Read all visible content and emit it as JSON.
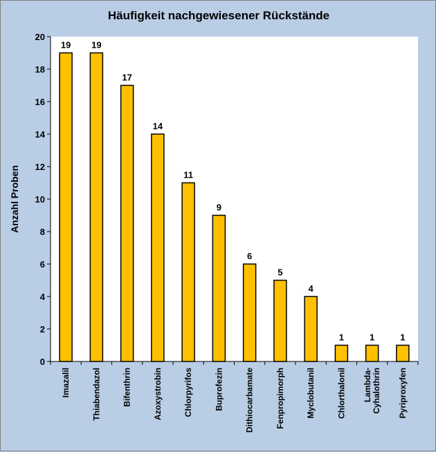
{
  "chart_data": {
    "type": "bar",
    "title": "Häufigkeit nachgewiesener Rückstände",
    "xlabel": "",
    "ylabel": "Anzahl Proben",
    "ylim": [
      0,
      20
    ],
    "yticks": [
      0,
      2,
      4,
      6,
      8,
      10,
      12,
      14,
      16,
      18,
      20
    ],
    "grid": false,
    "legend": "none",
    "categories": [
      "Imazalil",
      "Thiabendazol",
      "Bifenthrin",
      "Azoxystrobin",
      "Chlorpyrifos",
      "Buprofezin",
      "Dithiocarbamate",
      "Fenpropimorph",
      "Myclobutanil",
      "Chlorthalonil",
      "Lambda-Cyhalothrin",
      "Pyriproxyfen"
    ],
    "category_lines": [
      [
        "Imazalil"
      ],
      [
        "Thiabendazol"
      ],
      [
        "Bifenthrin"
      ],
      [
        "Azoxystrobin"
      ],
      [
        "Chlorpyrifos"
      ],
      [
        "Buprofezin"
      ],
      [
        "Dithiocarbamate"
      ],
      [
        "Fenpropimorph"
      ],
      [
        "Myclobutanil"
      ],
      [
        "Chlorthalonil"
      ],
      [
        "Lambda-",
        "Cyhalothrin"
      ],
      [
        "Pyriproxyfen"
      ]
    ],
    "values": [
      19,
      19,
      17,
      14,
      11,
      9,
      6,
      5,
      4,
      1,
      1,
      1
    ],
    "colors": {
      "bar": "#ffc000",
      "bar_edge": "#000000",
      "plot_bg": "#ffffff",
      "chart_bg": "#b9cde5"
    }
  }
}
